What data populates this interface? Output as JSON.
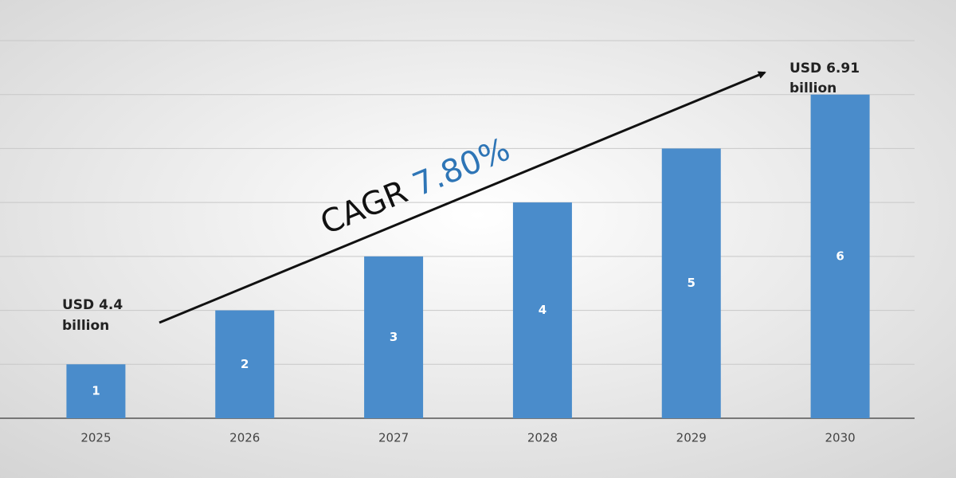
{
  "chart_data": {
    "type": "bar",
    "categories": [
      "2025",
      "2026",
      "2027",
      "2028",
      "2029",
      "2030"
    ],
    "values": [
      1,
      2,
      3,
      4,
      5,
      6
    ],
    "color": "#4a8ccb",
    "ylim": [
      0,
      7
    ],
    "yticks": [
      0,
      1,
      2,
      3,
      4,
      5,
      6,
      7
    ],
    "grid": true,
    "annotations": {
      "start": [
        "USD  4.4",
        "billion"
      ],
      "end": [
        "USD 6.91",
        "billion"
      ],
      "cagr_label": "CAGR",
      "cagr_value": "7.80%"
    }
  }
}
